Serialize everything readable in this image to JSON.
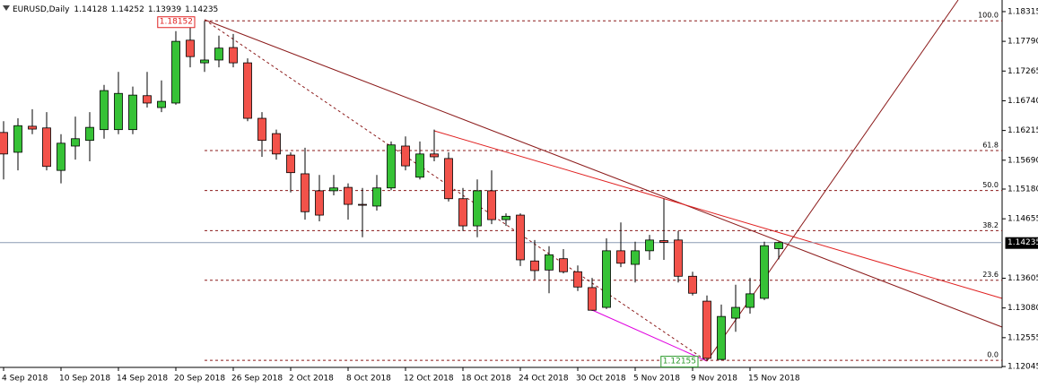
{
  "chart_data": {
    "type": "candlestick",
    "symbol": "EURUSD,Daily",
    "categories": [
      "4 Sep 2018",
      null,
      null,
      null,
      "10 Sep 2018",
      null,
      null,
      null,
      "14 Sep 2018",
      null,
      null,
      null,
      "20 Sep 2018",
      null,
      null,
      null,
      "26 Sep 2018",
      null,
      null,
      null,
      "2 Oct 2018",
      null,
      null,
      null,
      "8 Oct 2018",
      null,
      null,
      null,
      "12 Oct 2018",
      null,
      null,
      null,
      "18 Oct 2018",
      null,
      null,
      null,
      "24 Oct 2018",
      null,
      null,
      null,
      "30 Oct 2018",
      null,
      null,
      null,
      "5 Nov 2018",
      null,
      null,
      null,
      "9 Nov 2018",
      null,
      null,
      null,
      "15 Nov 2018",
      null,
      null
    ],
    "open": [
      1.1618,
      1.1583,
      1.1629,
      1.1626,
      1.1551,
      1.1594,
      1.1604,
      1.1623,
      1.1623,
      1.1623,
      1.1683,
      1.1662,
      1.167,
      1.1781,
      1.1741,
      1.1746,
      1.1768,
      1.1741,
      1.1643,
      1.1616,
      1.1578,
      1.1545,
      1.1515,
      1.1515,
      1.1521,
      1.1491,
      1.1488,
      1.152,
      1.1594,
      1.1539,
      1.158,
      1.1572,
      1.1501,
      1.1453,
      1.1515,
      1.1464,
      1.1472,
      1.1391,
      1.1375,
      1.1395,
      1.1372,
      1.1344,
      1.1309,
      1.1409,
      1.1385,
      1.1409,
      1.1427,
      1.1428,
      1.1364,
      1.132,
      1.1217,
      1.129,
      1.1309,
      1.1325,
      1.14128
    ],
    "high": [
      1.1638,
      1.1643,
      1.1659,
      1.1654,
      1.1615,
      1.1646,
      1.1654,
      1.1702,
      1.1725,
      1.1699,
      1.1725,
      1.171,
      1.1797,
      1.1809,
      1.18152,
      1.1789,
      1.1792,
      1.1749,
      1.1654,
      1.1623,
      1.1583,
      1.1591,
      1.1543,
      1.1543,
      1.1528,
      1.152,
      1.1543,
      1.1602,
      1.1611,
      1.1602,
      1.1623,
      1.1583,
      1.152,
      1.1535,
      1.1551,
      1.1475,
      1.1475,
      1.1428,
      1.1417,
      1.1412,
      1.1383,
      1.1361,
      1.1431,
      1.1459,
      1.1425,
      1.1437,
      1.1501,
      1.1444,
      1.1372,
      1.133,
      1.1314,
      1.1349,
      1.1361,
      1.1425,
      1.14252
    ],
    "low": [
      1.1535,
      1.1551,
      1.1615,
      1.1551,
      1.1528,
      1.157,
      1.1567,
      1.1607,
      1.1615,
      1.1615,
      1.1662,
      1.1654,
      1.1667,
      1.1733,
      1.1725,
      1.1733,
      1.1733,
      1.1638,
      1.1575,
      1.157,
      1.1512,
      1.1464,
      1.1461,
      1.1507,
      1.1464,
      1.1433,
      1.148,
      1.1516,
      1.1551,
      1.1535,
      1.1567,
      1.1496,
      1.1444,
      1.1433,
      1.1456,
      1.1453,
      1.1382,
      1.1358,
      1.1334,
      1.1369,
      1.1338,
      1.1303,
      1.1306,
      1.138,
      1.1353,
      1.1393,
      1.1393,
      1.1353,
      1.133,
      1.12155,
      1.1216,
      1.1266,
      1.1298,
      1.1322,
      1.13939
    ],
    "close": [
      1.158,
      1.163,
      1.1624,
      1.1558,
      1.1599,
      1.1607,
      1.1627,
      1.1692,
      1.1687,
      1.1684,
      1.167,
      1.1673,
      1.1779,
      1.1752,
      1.1746,
      1.1767,
      1.1741,
      1.1643,
      1.1604,
      1.158,
      1.1547,
      1.1478,
      1.1472,
      1.152,
      1.1491,
      1.149,
      1.152,
      1.1596,
      1.1559,
      1.158,
      1.1575,
      1.1501,
      1.1453,
      1.1515,
      1.1464,
      1.147,
      1.1393,
      1.1374,
      1.1402,
      1.1372,
      1.1345,
      1.1304,
      1.1409,
      1.1387,
      1.1409,
      1.1428,
      1.1424,
      1.1364,
      1.1334,
      1.1219,
      1.1293,
      1.1309,
      1.1333,
      1.1418,
      1.14235
    ],
    "up_color": "#36c236",
    "down_color": "#f2524a",
    "ylim": [
      1.1203,
      1.1852
    ],
    "yticks": [
      1.18315,
      {
        "value": 1.1779,
        "label": "1.17790"
      },
      1.17265,
      {
        "value": 1.1674,
        "label": "1.16740"
      },
      1.16215,
      {
        "value": 1.1569,
        "label": "1.15690"
      },
      {
        "value": 1.1518,
        "label": "1.15180"
      },
      1.14655,
      1.13605,
      {
        "value": 1.1308,
        "label": "1.13080"
      },
      1.12555,
      1.12045
    ],
    "fib_levels": [
      {
        "label": "100.0",
        "price": 1.18152
      },
      {
        "label": "61.8",
        "price": 1.15861
      },
      {
        "label": "50.0",
        "price": 1.15154
      },
      {
        "label": "38.2",
        "price": 1.14446
      },
      {
        "label": "23.6",
        "price": 1.1357
      },
      {
        "label": "0.0",
        "price": 1.12155
      }
    ],
    "fib_color": "#8b1a1a",
    "price_line_color": "#8b9bb4"
  }
}
